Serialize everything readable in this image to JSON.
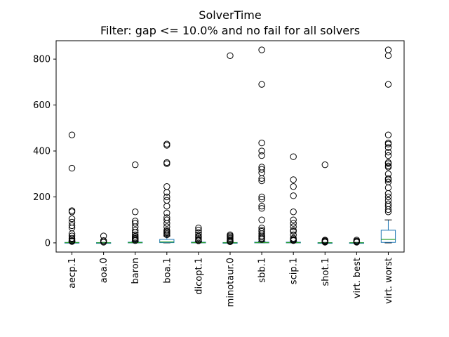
{
  "chart_data": {
    "type": "box",
    "title": "SolverTime",
    "subtitle": "Filter: gap <= 10.0% and no fail for all solvers",
    "xlabel": "",
    "ylabel": "",
    "ylim": [
      -40,
      880
    ],
    "yticks": [
      0,
      200,
      400,
      600,
      800
    ],
    "grid": false,
    "legend": "none",
    "colors": {
      "box": "#1f77b4",
      "median": "#2ca02c",
      "whisker": "#000000",
      "flier": "#000000"
    },
    "categories": [
      "aecp.1",
      "aoa.0",
      "baron",
      "boa.1",
      "dicopt.1",
      "minotaur.0",
      "sbb.1",
      "scip.1",
      "shot.1",
      "virt. best",
      "virt. worst"
    ],
    "series": [
      {
        "q1": 0,
        "median": 1,
        "q3": 2,
        "whisker_low": 0,
        "whisker_high": 5,
        "fliers": [
          470,
          325,
          140,
          135,
          105,
          90,
          75,
          65,
          40,
          30,
          20,
          15,
          10,
          8,
          6
        ]
      },
      {
        "q1": 0,
        "median": 0.5,
        "q3": 1,
        "whisker_low": 0,
        "whisker_high": 2,
        "fliers": [
          30,
          10,
          5,
          3
        ]
      },
      {
        "q1": 0,
        "median": 1,
        "q3": 3,
        "whisker_low": 0,
        "whisker_high": 7,
        "fliers": [
          340,
          135,
          95,
          85,
          70,
          55,
          45,
          35,
          28,
          22,
          18,
          14,
          10
        ]
      },
      {
        "q1": 1,
        "median": 4,
        "q3": 15,
        "whisker_low": 0,
        "whisker_high": 30,
        "fliers": [
          430,
          425,
          350,
          345,
          245,
          220,
          200,
          185,
          160,
          130,
          110,
          100,
          85,
          70,
          55,
          50,
          45,
          40,
          35
        ]
      },
      {
        "q1": 0,
        "median": 1,
        "q3": 3,
        "whisker_low": 0,
        "whisker_high": 6,
        "fliers": [
          65,
          55,
          45,
          35,
          28,
          22,
          16,
          12,
          9
        ]
      },
      {
        "q1": 0,
        "median": 0.5,
        "q3": 1.5,
        "whisker_low": 0,
        "whisker_high": 3,
        "fliers": [
          815,
          35,
          30,
          25,
          20,
          15,
          10,
          7,
          5
        ]
      },
      {
        "q1": 0,
        "median": 1,
        "q3": 3,
        "whisker_low": 0,
        "whisker_high": 7,
        "fliers": [
          840,
          690,
          435,
          400,
          380,
          330,
          320,
          305,
          280,
          270,
          200,
          190,
          160,
          150,
          100,
          65,
          55,
          50,
          40,
          30,
          25,
          20,
          15
        ]
      },
      {
        "q1": 0,
        "median": 1,
        "q3": 3,
        "whisker_low": 0,
        "whisker_high": 7,
        "fliers": [
          375,
          275,
          245,
          205,
          135,
          100,
          85,
          70,
          55,
          50,
          35,
          20,
          15,
          12,
          10
        ]
      },
      {
        "q1": 0,
        "median": 0.5,
        "q3": 1,
        "whisker_low": 0,
        "whisker_high": 2,
        "fliers": [
          340,
          12,
          9,
          6,
          4,
          3
        ]
      },
      {
        "q1": 0,
        "median": 0.5,
        "q3": 1,
        "whisker_low": 0,
        "whisker_high": 2,
        "fliers": [
          12,
          8,
          5,
          3
        ]
      },
      {
        "q1": 2,
        "median": 15,
        "q3": 55,
        "whisker_low": 0,
        "whisker_high": 100,
        "fliers": [
          840,
          815,
          690,
          470,
          435,
          430,
          415,
          395,
          380,
          350,
          345,
          335,
          330,
          300,
          280,
          275,
          265,
          240,
          215,
          200,
          185,
          170,
          160,
          145,
          135
        ]
      }
    ]
  }
}
